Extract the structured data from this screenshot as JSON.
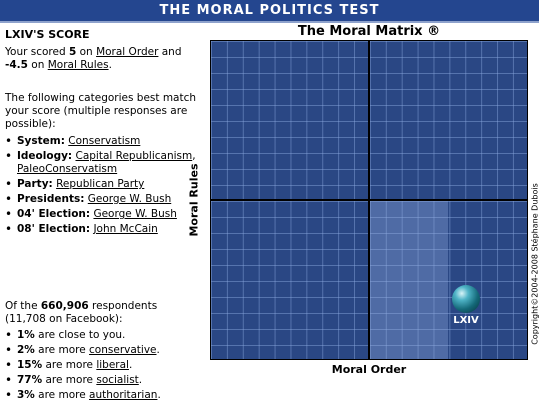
{
  "banner": {
    "title": "THE MORAL POLITICS TEST"
  },
  "score": {
    "heading": "LXIV'S SCORE",
    "line_prefix": "Your scored ",
    "moral_order_value": "5",
    "on1": " on ",
    "moral_order_label": "Moral Order",
    "and": " and ",
    "moral_rules_value": "-4.5",
    "on2": " on ",
    "moral_rules_label": "Moral Rules",
    "end": "."
  },
  "categories": {
    "intro": "The following categories best match your score (multiple responses are possible):",
    "items": [
      {
        "label": "System:",
        "value": "Conservatism"
      },
      {
        "label": "Ideology:",
        "value": "Capital Republicanism",
        "value2": "PaleoConservatism"
      },
      {
        "label": "Party:",
        "value": "Republican Party"
      },
      {
        "label": "Presidents:",
        "value": "George W. Bush"
      },
      {
        "label": "04' Election:",
        "value": "George W. Bush"
      },
      {
        "label": "08' Election:",
        "value": "John McCain"
      }
    ]
  },
  "respondents": {
    "prefix": "Of the ",
    "count": "660,906",
    "suffix": " respondents (11,708 on Facebook):",
    "items": [
      {
        "pct": "1%",
        "text": " are close to you.",
        "link": ""
      },
      {
        "pct": "2%",
        "text": " are more ",
        "link": "conservative",
        "end": "."
      },
      {
        "pct": "15%",
        "text": " are more ",
        "link": "liberal",
        "end": "."
      },
      {
        "pct": "77%",
        "text": " are more ",
        "link": "socialist",
        "end": "."
      },
      {
        "pct": "3%",
        "text": " are more ",
        "link": "authoritarian",
        "end": "."
      }
    ]
  },
  "matrix": {
    "title": "The Moral Matrix ®",
    "xlabel": "Moral Order",
    "ylabel": "Moral Rules",
    "copyright": "Copyright©2004-2008 Stéphane Dubois",
    "marker_label": "LXIV",
    "x_range": [
      -10,
      10
    ],
    "y_range": [
      -10,
      10
    ],
    "marker": {
      "x": 5,
      "y": -4.5
    },
    "highlight": {
      "x": [
        0,
        5
      ],
      "y": [
        -10,
        0
      ]
    },
    "colors": {
      "background": "#2a4784",
      "banner": "#24468f"
    }
  }
}
